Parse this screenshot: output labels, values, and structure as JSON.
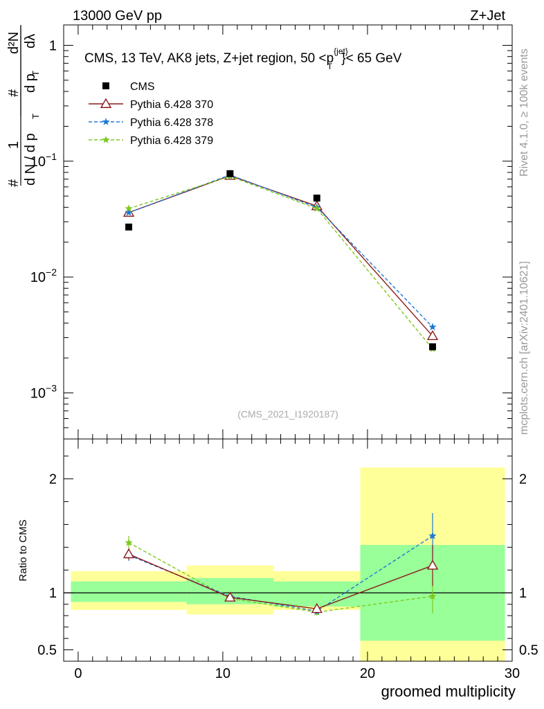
{
  "header": {
    "left": "13000 GeV pp",
    "right": "Z+Jet"
  },
  "side": {
    "rivet": "Rivet 4.1.0, ≥ 100k events",
    "mcplots": "mcplots.cern.ch [arXiv:2401.10621]"
  },
  "colors": {
    "cms": "#000000",
    "p370": "#8b1a1a",
    "p378": "#1e78d7",
    "p379": "#7ec81e",
    "band_inner": "#99ff99",
    "band_outer": "#ffff99"
  },
  "chart_data": {
    "type": "line",
    "title": "CMS, 13 TeV, AK8 jets, Z+jet region, 50 <p_T^{jet}< 65 GeV",
    "title_parts": {
      "main": "CMS, 13 TeV, AK8 jets, Z+jet region, 50 <p",
      "sup": "{jet}",
      "sub": "T",
      "tail": "}< 65 GeV"
    },
    "analysis_label": "(CMS_2021_I1920187)",
    "xlabel": "groomed multiplicity",
    "ylabel_main": "1/N dN/dp_T d^2N/dp_T dλ",
    "ylabel_parts": {
      "hash": "#",
      "one": "1",
      "dN": "d N / d p",
      "T": "T",
      "d2N": "d²N",
      "dpT": "d p",
      "dl": "dλ"
    },
    "ylabel_ratio": "Ratio to CMS",
    "xlim": [
      -1,
      30
    ],
    "ylim_main": [
      0.0004,
      1.5
    ],
    "ylim_ratio": [
      0.4,
      2.35
    ],
    "x_ticks": [
      "0",
      "10",
      "20",
      "30"
    ],
    "x_tick_values": [
      0,
      10,
      20,
      30
    ],
    "y_main_ticks": [
      {
        "value": 1,
        "base": "1",
        "exp": ""
      },
      {
        "value": 0.1,
        "base": "10",
        "exp": "−1"
      },
      {
        "value": 0.01,
        "base": "10",
        "exp": "−2"
      },
      {
        "value": 0.001,
        "base": "10",
        "exp": "−3"
      }
    ],
    "y_ratio_ticks": [
      {
        "value": 2,
        "label": "2"
      },
      {
        "value": 1,
        "label": "1"
      },
      {
        "value": 0.5,
        "label": "0.5"
      }
    ],
    "bins": [
      {
        "lo": -0.5,
        "hi": 7.5
      },
      {
        "lo": 7.5,
        "hi": 13.5
      },
      {
        "lo": 13.5,
        "hi": 19.5
      },
      {
        "lo": 19.5,
        "hi": 29.5
      }
    ],
    "x": [
      3.5,
      10.5,
      16.5,
      24.5
    ],
    "series": [
      {
        "name": "CMS",
        "key": "cms",
        "values": [
          0.027,
          0.078,
          0.048,
          0.0025
        ],
        "marker": "square"
      },
      {
        "name": "Pythia 6.428 370",
        "key": "p370",
        "values": [
          0.036,
          0.075,
          0.041,
          0.0031
        ],
        "ratio": [
          1.34,
          0.96,
          0.86,
          1.24
        ],
        "ratio_err": [
          0.05,
          0.02,
          0.03,
          0.18
        ],
        "marker": "triangle",
        "dash": false
      },
      {
        "name": "Pythia 6.428 378",
        "key": "p378",
        "values": [
          0.036,
          0.076,
          0.04,
          0.0037
        ],
        "ratio": [
          1.33,
          0.97,
          0.84,
          1.5
        ],
        "ratio_err": [
          0.05,
          0.02,
          0.03,
          0.2
        ],
        "marker": "star",
        "dash": true
      },
      {
        "name": "Pythia 6.428 379",
        "key": "p379",
        "values": [
          0.039,
          0.074,
          0.039,
          0.0024
        ],
        "ratio": [
          1.44,
          0.95,
          0.83,
          0.97
        ],
        "ratio_err": [
          0.06,
          0.02,
          0.03,
          0.15
        ],
        "marker": "star",
        "dash": true
      }
    ],
    "ratio_band_inner": [
      [
        0.92,
        1.1
      ],
      [
        0.9,
        1.13
      ],
      [
        0.88,
        1.1
      ],
      [
        0.58,
        1.42
      ]
    ],
    "ratio_band_outer": [
      [
        0.85,
        1.19
      ],
      [
        0.81,
        1.24
      ],
      [
        0.85,
        1.19
      ],
      [
        0.4,
        2.1
      ]
    ]
  }
}
